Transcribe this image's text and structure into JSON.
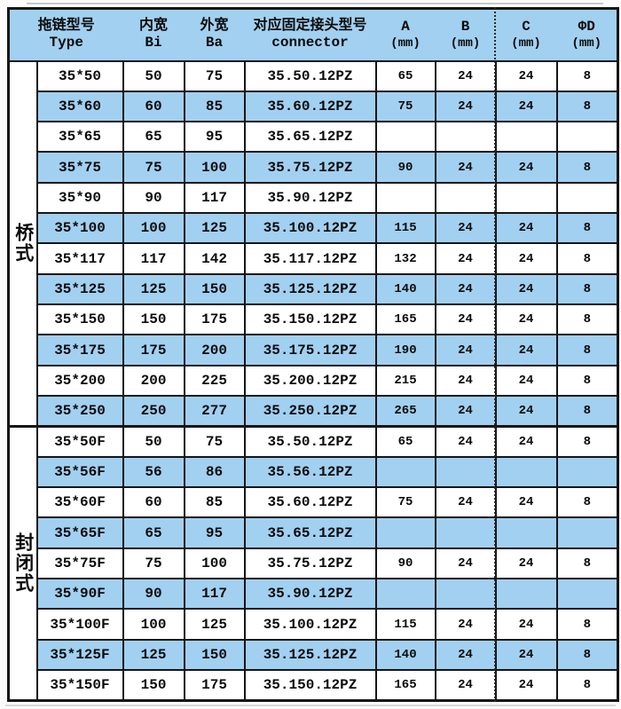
{
  "table": {
    "header": {
      "type_zh": "拖链型号",
      "type_en": "Type",
      "bi_zh": "内宽",
      "bi_en": "Bi",
      "ba_zh": "外宽",
      "ba_en": "Ba",
      "connector_zh": "对应固定接头型号",
      "connector_en": "connector",
      "a_label": "A",
      "a_unit": "(mm)",
      "b_label": "B",
      "b_unit": "(mm)",
      "c_label": "C",
      "c_unit": "(mm)",
      "d_label": "ΦD",
      "d_unit": "(mm)"
    },
    "sections": [
      {
        "label": "桥式",
        "rows": [
          [
            "35*50",
            "50",
            "75",
            "35.50.12PZ",
            "65",
            "24",
            "24",
            "8"
          ],
          [
            "35*60",
            "60",
            "85",
            "35.60.12PZ",
            "75",
            "24",
            "24",
            "8"
          ],
          [
            "35*65",
            "65",
            "95",
            "35.65.12PZ",
            "",
            "",
            "",
            ""
          ],
          [
            "35*75",
            "75",
            "100",
            "35.75.12PZ",
            "90",
            "24",
            "24",
            "8"
          ],
          [
            "35*90",
            "90",
            "117",
            "35.90.12PZ",
            "",
            "",
            "",
            ""
          ],
          [
            "35*100",
            "100",
            "125",
            "35.100.12PZ",
            "115",
            "24",
            "24",
            "8"
          ],
          [
            "35*117",
            "117",
            "142",
            "35.117.12PZ",
            "132",
            "24",
            "24",
            "8"
          ],
          [
            "35*125",
            "125",
            "150",
            "35.125.12PZ",
            "140",
            "24",
            "24",
            "8"
          ],
          [
            "35*150",
            "150",
            "175",
            "35.150.12PZ",
            "165",
            "24",
            "24",
            "8"
          ],
          [
            "35*175",
            "175",
            "200",
            "35.175.12PZ",
            "190",
            "24",
            "24",
            "8"
          ],
          [
            "35*200",
            "200",
            "225",
            "35.200.12PZ",
            "215",
            "24",
            "24",
            "8"
          ],
          [
            "35*250",
            "250",
            "277",
            "35.250.12PZ",
            "265",
            "24",
            "24",
            "8"
          ]
        ]
      },
      {
        "label": "封闭式",
        "rows": [
          [
            "35*50F",
            "50",
            "75",
            "35.50.12PZ",
            "65",
            "24",
            "24",
            "8"
          ],
          [
            "35*56F",
            "56",
            "86",
            "35.56.12PZ",
            "",
            "",
            "",
            ""
          ],
          [
            "35*60F",
            "60",
            "85",
            "35.60.12PZ",
            "75",
            "24",
            "24",
            "8"
          ],
          [
            "35*65F",
            "65",
            "95",
            "35.65.12PZ",
            "",
            "",
            "",
            ""
          ],
          [
            "35*75F",
            "75",
            "100",
            "35.75.12PZ",
            "90",
            "24",
            "24",
            "8"
          ],
          [
            "35*90F",
            "90",
            "117",
            "35.90.12PZ",
            "",
            "",
            "",
            ""
          ],
          [
            "35*100F",
            "100",
            "125",
            "35.100.12PZ",
            "115",
            "24",
            "24",
            "8"
          ],
          [
            "35*125F",
            "125",
            "150",
            "35.125.12PZ",
            "140",
            "24",
            "24",
            "8"
          ],
          [
            "35*150F",
            "150",
            "175",
            "35.150.12PZ",
            "165",
            "24",
            "24",
            "8"
          ]
        ]
      }
    ]
  },
  "colors": {
    "header_blue": "#a2d0f0",
    "row_blue": "#a2d0f0",
    "border": "#151515"
  }
}
